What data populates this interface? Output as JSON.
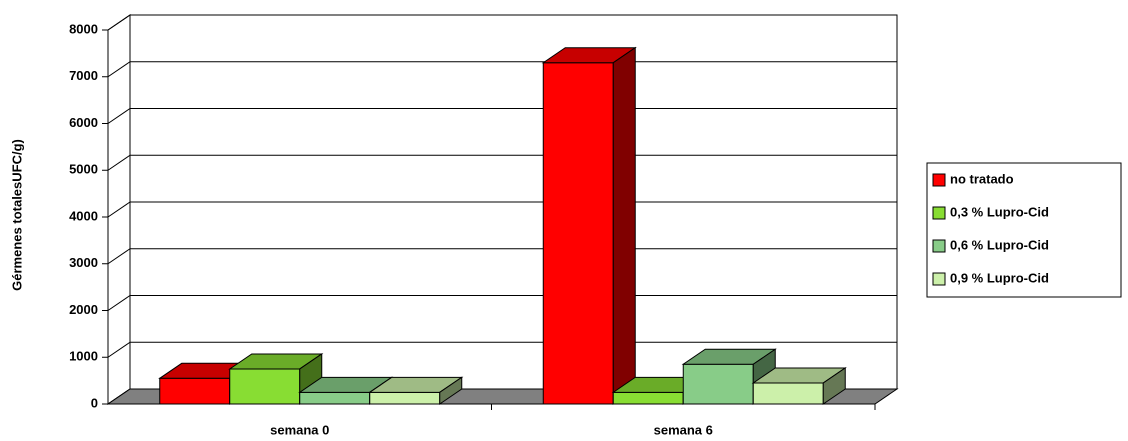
{
  "chart_data": {
    "type": "bar3d",
    "y_label": "Gérmenes totalesUFC/g)",
    "categories": [
      "semana 0",
      "semana 6"
    ],
    "series": [
      {
        "name": "no tratado",
        "color": "#ff0000",
        "values": [
          550,
          7300
        ]
      },
      {
        "name": "0,3 % Lupro-Cid",
        "color": "#88dd33",
        "values": [
          750,
          250
        ]
      },
      {
        "name": "0,6 % Lupro-Cid",
        "color": "#88cc88",
        "values": [
          250,
          850
        ]
      },
      {
        "name": "0,9 % Lupro-Cid",
        "color": "#ccf0aa",
        "values": [
          250,
          450
        ]
      }
    ],
    "ylim": [
      0,
      8000
    ],
    "yticks": [
      0,
      1000,
      2000,
      3000,
      4000,
      5000,
      6000,
      7000,
      8000
    ],
    "grid": true,
    "legend": "right"
  }
}
